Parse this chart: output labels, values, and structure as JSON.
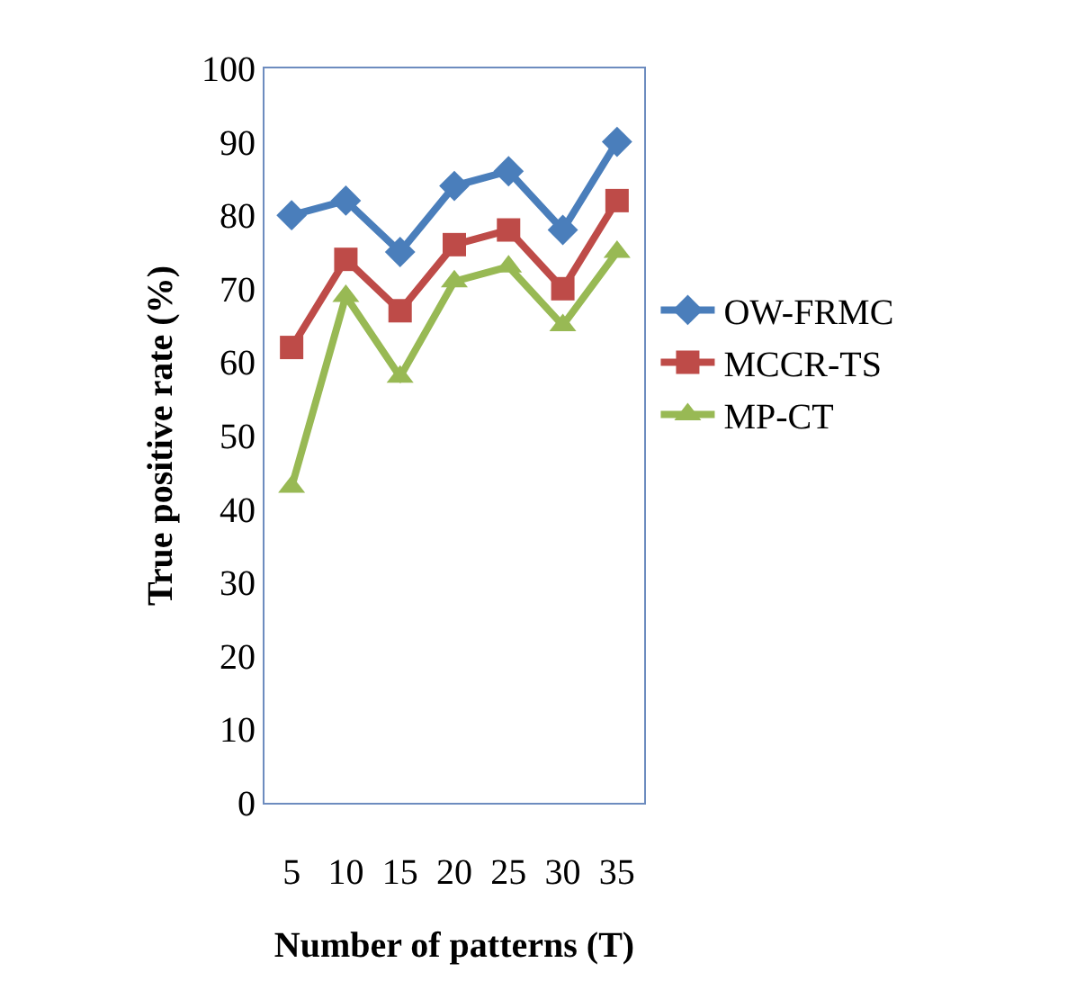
{
  "chart_data": {
    "type": "line",
    "xlabel": "Number of patterns (T)",
    "ylabel": "True positive rate (%)",
    "categories": [
      "5",
      "10",
      "15",
      "20",
      "25",
      "30",
      "35"
    ],
    "series": [
      {
        "name": "OW-FRMC",
        "color": "#4a7ebb",
        "marker": "diamond",
        "values": [
          80,
          82,
          75,
          84,
          86,
          78,
          90
        ]
      },
      {
        "name": "MCCR-TS",
        "color": "#be4b48",
        "marker": "square",
        "values": [
          62,
          74,
          67,
          76,
          78,
          70,
          82
        ]
      },
      {
        "name": "MP-CT",
        "color": "#98b954",
        "marker": "triangle",
        "values": [
          43,
          69,
          58,
          71,
          73,
          65,
          75
        ]
      }
    ],
    "ylim": [
      0,
      100
    ],
    "yticks": [
      0,
      10,
      20,
      30,
      40,
      50,
      60,
      70,
      80,
      90,
      100
    ],
    "grid": false,
    "legend": "right",
    "line_style": "solid"
  }
}
